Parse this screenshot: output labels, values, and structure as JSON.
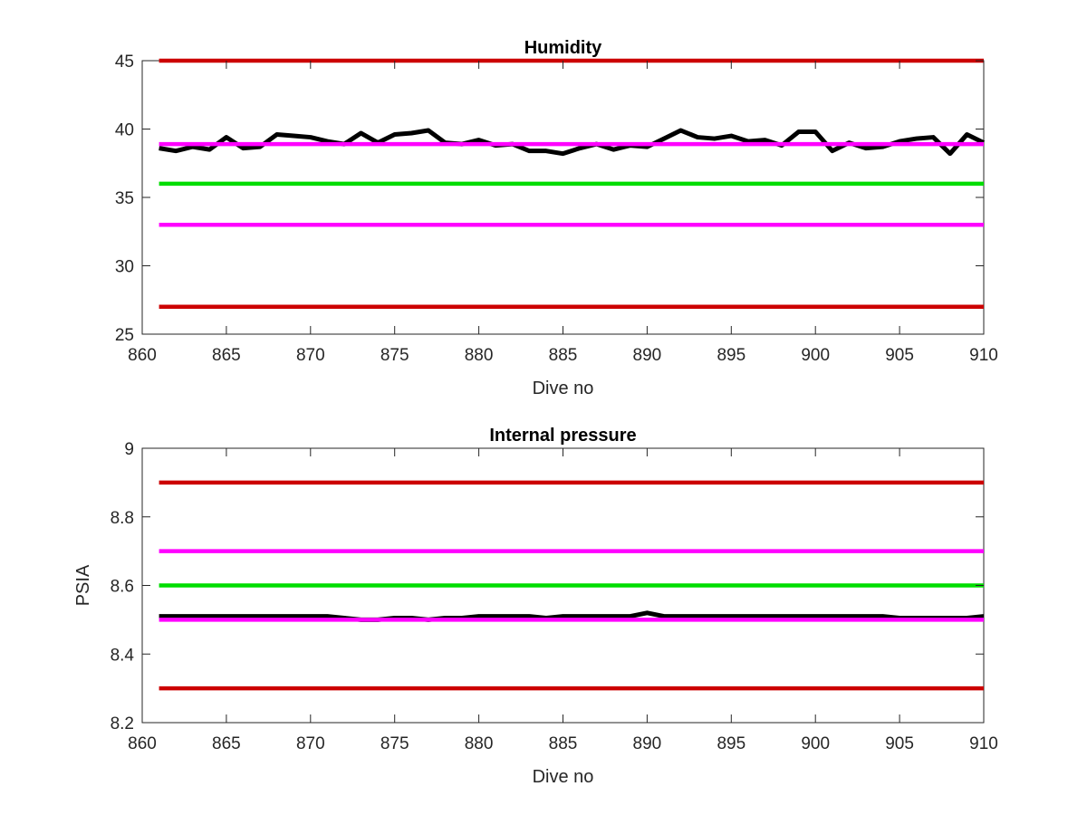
{
  "chart_data": [
    {
      "type": "line",
      "title": "Humidity",
      "xlabel": "Dive no",
      "ylabel": "",
      "xlim": [
        860,
        910
      ],
      "ylim": [
        25,
        45
      ],
      "xticks": [
        860,
        865,
        870,
        875,
        880,
        885,
        890,
        895,
        900,
        905,
        910
      ],
      "yticks": [
        25,
        30,
        35,
        40,
        45
      ],
      "grid": false,
      "series": [
        {
          "color": "#000000",
          "x": [
            861,
            862,
            863,
            864,
            865,
            866,
            867,
            868,
            869,
            870,
            871,
            872,
            873,
            874,
            875,
            876,
            877,
            878,
            879,
            880,
            881,
            882,
            883,
            884,
            885,
            886,
            887,
            888,
            889,
            890,
            891,
            892,
            893,
            894,
            895,
            896,
            897,
            898,
            899,
            900,
            901,
            902,
            903,
            904,
            905,
            906,
            907,
            908,
            909,
            910
          ],
          "values": [
            38.6,
            38.4,
            38.7,
            38.5,
            39.4,
            38.6,
            38.7,
            39.6,
            39.5,
            39.4,
            39.1,
            38.9,
            39.7,
            39.0,
            39.6,
            39.7,
            39.9,
            39.0,
            38.9,
            39.2,
            38.8,
            38.9,
            38.4,
            38.4,
            38.2,
            38.6,
            38.9,
            38.5,
            38.8,
            38.7,
            39.3,
            39.9,
            39.4,
            39.3,
            39.5,
            39.1,
            39.2,
            38.8,
            39.8,
            39.8,
            38.4,
            39.0,
            38.6,
            38.7,
            39.1,
            39.3,
            39.4,
            38.2,
            39.6,
            39.0
          ]
        },
        {
          "color": "#cc0000",
          "x": [
            861,
            910
          ],
          "values": [
            45,
            45
          ]
        },
        {
          "color": "#ff00ff",
          "x": [
            861,
            910
          ],
          "values": [
            38.9,
            38.9
          ]
        },
        {
          "color": "#00dd00",
          "x": [
            861,
            910
          ],
          "values": [
            36,
            36
          ]
        },
        {
          "color": "#ff00ff",
          "x": [
            861,
            910
          ],
          "values": [
            33,
            33
          ]
        },
        {
          "color": "#cc0000",
          "x": [
            861,
            910
          ],
          "values": [
            27,
            27
          ]
        }
      ]
    },
    {
      "type": "line",
      "title": "Internal pressure",
      "xlabel": "Dive no",
      "ylabel": "PSIA",
      "xlim": [
        860,
        910
      ],
      "ylim": [
        8.2,
        9
      ],
      "xticks": [
        860,
        865,
        870,
        875,
        880,
        885,
        890,
        895,
        900,
        905,
        910
      ],
      "yticks": [
        8.2,
        8.4,
        8.6,
        8.8,
        9
      ],
      "grid": false,
      "series": [
        {
          "color": "#000000",
          "x": [
            861,
            862,
            863,
            864,
            865,
            866,
            867,
            868,
            869,
            870,
            871,
            872,
            873,
            874,
            875,
            876,
            877,
            878,
            879,
            880,
            881,
            882,
            883,
            884,
            885,
            886,
            887,
            888,
            889,
            890,
            891,
            892,
            893,
            894,
            895,
            896,
            897,
            898,
            899,
            900,
            901,
            902,
            903,
            904,
            905,
            906,
            907,
            908,
            909,
            910
          ],
          "values": [
            8.51,
            8.51,
            8.51,
            8.51,
            8.51,
            8.51,
            8.51,
            8.51,
            8.51,
            8.51,
            8.51,
            8.505,
            8.5,
            8.5,
            8.505,
            8.505,
            8.5,
            8.505,
            8.505,
            8.51,
            8.51,
            8.51,
            8.51,
            8.505,
            8.51,
            8.51,
            8.51,
            8.51,
            8.51,
            8.52,
            8.51,
            8.51,
            8.51,
            8.51,
            8.51,
            8.51,
            8.51,
            8.51,
            8.51,
            8.51,
            8.51,
            8.51,
            8.51,
            8.51,
            8.505,
            8.505,
            8.505,
            8.505,
            8.505,
            8.51
          ]
        },
        {
          "color": "#cc0000",
          "x": [
            861,
            910
          ],
          "values": [
            8.9,
            8.9
          ]
        },
        {
          "color": "#ff00ff",
          "x": [
            861,
            910
          ],
          "values": [
            8.7,
            8.7
          ]
        },
        {
          "color": "#00dd00",
          "x": [
            861,
            910
          ],
          "values": [
            8.6,
            8.6
          ]
        },
        {
          "color": "#ff00ff",
          "x": [
            861,
            910
          ],
          "values": [
            8.5,
            8.5
          ]
        },
        {
          "color": "#cc0000",
          "x": [
            861,
            910
          ],
          "values": [
            8.3,
            8.3
          ]
        }
      ]
    }
  ]
}
